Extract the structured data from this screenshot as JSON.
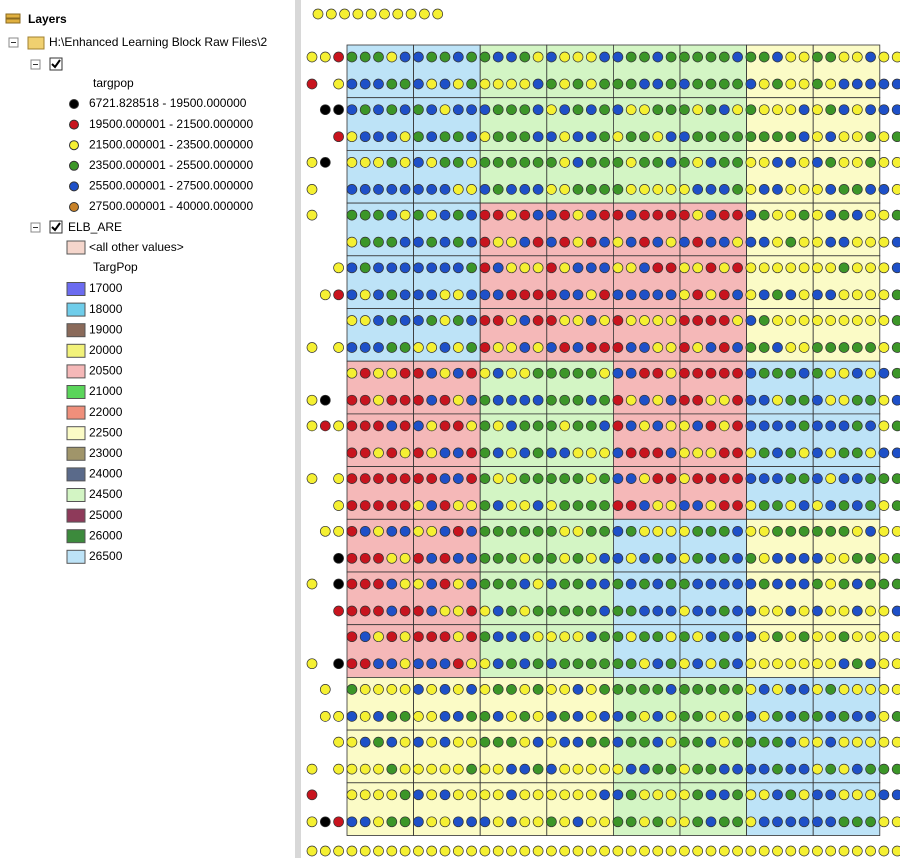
{
  "toc": {
    "title": "Layers",
    "group": "H:\\Enhanced Learning Block Raw Files\\2",
    "point_layer": {
      "field": "targpop",
      "classes": [
        {
          "label": "6721.828518 - 19500.000000",
          "color": "#000000"
        },
        {
          "label": "19500.000001 - 21500.000000",
          "color": "#c8141e"
        },
        {
          "label": "21500.000001 - 23500.000000",
          "color": "#f5f032"
        },
        {
          "label": "23500.000001 - 25500.000000",
          "color": "#3c9628"
        },
        {
          "label": "25500.000001 - 27500.000000",
          "color": "#1e50c8"
        },
        {
          "label": "27500.000001 - 40000.000000",
          "color": "#c88228"
        }
      ]
    },
    "polygon_layer": {
      "name": "ELB_ARE",
      "other": {
        "label": "<all other values>",
        "color": "#f5d6cc"
      },
      "field": "TargPop",
      "classes": [
        {
          "label": "17000",
          "color": "#6b6bf0"
        },
        {
          "label": "18000",
          "color": "#6fcdea"
        },
        {
          "label": "19000",
          "color": "#8a6a5a"
        },
        {
          "label": "20000",
          "color": "#f2f27a"
        },
        {
          "label": "20500",
          "color": "#f5b8b8"
        },
        {
          "label": "21000",
          "color": "#5ad55a"
        },
        {
          "label": "22000",
          "color": "#ef8f7b"
        },
        {
          "label": "22500",
          "color": "#fbfbc6"
        },
        {
          "label": "23000",
          "color": "#a0956a"
        },
        {
          "label": "24000",
          "color": "#5a6a8a"
        },
        {
          "label": "24500",
          "color": "#d3f5c4"
        },
        {
          "label": "25000",
          "color": "#8e3a5a"
        },
        {
          "label": "26000",
          "color": "#3c8a3c"
        },
        {
          "label": "26500",
          "color": "#bde3f7"
        }
      ]
    }
  }
}
